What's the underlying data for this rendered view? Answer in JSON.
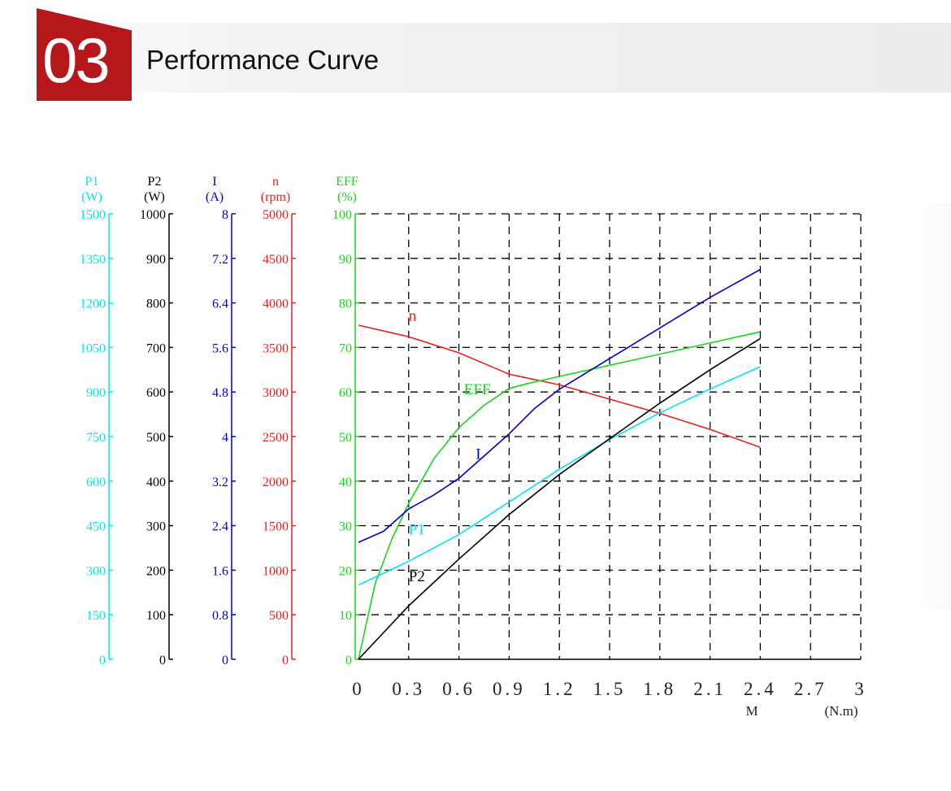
{
  "header": {
    "number": "03",
    "title": "Performance Curve"
  },
  "colors": {
    "accent": "#b5171b",
    "p1": "#00e5ee",
    "p2": "#000000",
    "current": "#0000cc",
    "speed": "#e8201e",
    "eff": "#19d419",
    "grid": "#000000"
  },
  "chart_data": {
    "type": "line",
    "grid": true,
    "grid_style": "dashed",
    "x_axis": {
      "min": 0,
      "max": 3,
      "ticks": [
        "0",
        "0.3",
        "0.6",
        "0.9",
        "1.2",
        "1.5",
        "1.8",
        "2.1",
        "2.4",
        "2.7",
        "3"
      ],
      "label": "M",
      "unit": "(N.m)"
    },
    "y_axes": [
      {
        "key": "p1",
        "name": "P1",
        "unit": "(W)",
        "min": 0,
        "max": 1500,
        "ticks": [
          "0",
          "150",
          "300",
          "450",
          "600",
          "750",
          "900",
          "1050",
          "1200",
          "1350",
          "1500"
        ]
      },
      {
        "key": "p2",
        "name": "P2",
        "unit": "(W)",
        "min": 0,
        "max": 1000,
        "ticks": [
          "0",
          "100",
          "200",
          "300",
          "400",
          "500",
          "600",
          "700",
          "800",
          "900",
          "1000"
        ]
      },
      {
        "key": "current",
        "name": "I",
        "unit": "(A)",
        "min": 0,
        "max": 8,
        "ticks": [
          "0",
          "0.8",
          "1.6",
          "2.4",
          "3.2",
          "4",
          "4.8",
          "5.6",
          "6.4",
          "7.2",
          "8"
        ]
      },
      {
        "key": "speed",
        "name": "n",
        "unit": "(rpm)",
        "min": 0,
        "max": 5000,
        "ticks": [
          "0",
          "500",
          "1000",
          "1500",
          "2000",
          "2500",
          "3000",
          "3500",
          "4000",
          "4500",
          "5000"
        ]
      },
      {
        "key": "eff",
        "name": "EFF",
        "unit": "(%)",
        "min": 0,
        "max": 100,
        "ticks": [
          "0",
          "10",
          "20",
          "30",
          "40",
          "50",
          "60",
          "70",
          "80",
          "90",
          "100"
        ]
      }
    ],
    "series": [
      {
        "name": "n",
        "axis": "speed",
        "label_at": [
          0.3,
          3800
        ],
        "x": [
          0,
          0.3,
          0.6,
          0.9,
          1.2,
          1.5,
          1.8,
          2.1,
          2.4
        ],
        "values": [
          3750,
          3620,
          3440,
          3200,
          3080,
          2920,
          2760,
          2580,
          2380
        ]
      },
      {
        "name": "EFF",
        "axis": "eff",
        "label_at": [
          0.63,
          59.5
        ],
        "x": [
          0,
          0.1,
          0.2,
          0.3,
          0.45,
          0.6,
          0.75,
          0.9,
          1.0,
          1.2,
          1.5,
          1.8,
          2.1,
          2.4
        ],
        "values": [
          0,
          17,
          27,
          35,
          45,
          52,
          57,
          60.8,
          61.8,
          63.5,
          66,
          68.5,
          71,
          73.5
        ]
      },
      {
        "name": "I",
        "axis": "current",
        "label_at": [
          0.7,
          3.6
        ],
        "x": [
          0,
          0.15,
          0.3,
          0.45,
          0.6,
          0.75,
          0.9,
          1.05,
          1.2,
          1.5,
          1.8,
          2.1,
          2.4
        ],
        "values": [
          2.1,
          2.3,
          2.7,
          2.95,
          3.25,
          3.65,
          4.05,
          4.5,
          4.85,
          5.4,
          5.95,
          6.5,
          7.0
        ]
      },
      {
        "name": "P1",
        "axis": "p1",
        "label_at": [
          0.3,
          420
        ],
        "x": [
          0,
          0.3,
          0.6,
          0.9,
          1.2,
          1.5,
          1.8,
          2.1,
          2.4
        ],
        "values": [
          250,
          330,
          420,
          530,
          640,
          740,
          830,
          910,
          985
        ]
      },
      {
        "name": "P2",
        "axis": "p2",
        "label_at": [
          0.3,
          175
        ],
        "x": [
          0,
          0.3,
          0.6,
          0.9,
          1.2,
          1.5,
          1.8,
          2.1,
          2.4
        ],
        "values": [
          0,
          120,
          225,
          325,
          415,
          495,
          575,
          650,
          720
        ]
      }
    ]
  }
}
